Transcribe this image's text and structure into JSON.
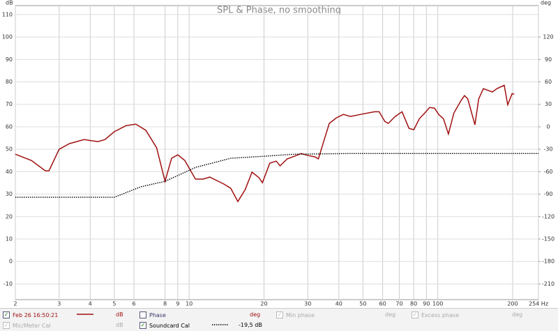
{
  "chart_data": {
    "type": "line",
    "title": "SPL & Phase, no smoothing",
    "ylabel": "dB",
    "y2label": "deg",
    "xscale": "log",
    "grid": true,
    "xlim": [
      2,
      254
    ],
    "xticks": [
      2,
      3,
      4,
      5,
      6,
      8,
      9,
      10,
      20,
      30,
      40,
      50,
      60,
      70,
      80,
      90,
      100,
      200,
      {
        "value": 254,
        "label": "254 Hz"
      }
    ],
    "ylim": [
      -17,
      114
    ],
    "yticks": [
      -10,
      0,
      10,
      20,
      30,
      40,
      50,
      60,
      70,
      80,
      90,
      100,
      110
    ],
    "y2lim": [
      -231,
      162
    ],
    "y2ticks": [
      -210,
      -180,
      -150,
      -120,
      -90,
      -60,
      -30,
      0,
      30,
      60,
      90,
      120
    ],
    "series": [
      {
        "name": "Feb 26 16:50:21",
        "color": "#a01010",
        "unit": "dB",
        "checked": true,
        "x": [
          2,
          2.32,
          2.64,
          2.73,
          3.0,
          3.3,
          3.78,
          4.3,
          4.58,
          5.0,
          5.57,
          6.1,
          6.7,
          7.4,
          8.0,
          8.5,
          9.0,
          9.6,
          10.6,
          11.4,
          12.1,
          13.8,
          14.7,
          15.7,
          16.8,
          17.9,
          19.1,
          19.7,
          21.1,
          22.4,
          23.2,
          24.8,
          26.5,
          28.2,
          30.1,
          32.1,
          33.1,
          34.8,
          36.6,
          39.1,
          41.7,
          44.5,
          48.9,
          55.6,
          58.1,
          61.2,
          63.2,
          67.4,
          71.8,
          76.6,
          80.1,
          84.3,
          88.6,
          92.7,
          97,
          100.8,
          105.4,
          110.3,
          116,
          124,
          128,
          132,
          141,
          146,
          152.5,
          165.6,
          173,
          185,
          191,
          199,
          203
        ],
        "values": [
          47.8,
          45.0,
          40.4,
          40.4,
          50,
          52.5,
          54.3,
          53.4,
          54.3,
          57.8,
          60.5,
          61.2,
          58.4,
          50.6,
          35.7,
          46,
          47.5,
          45,
          36.7,
          36.7,
          37.6,
          34.5,
          32.6,
          26.7,
          32,
          39.8,
          37.3,
          35.1,
          43.8,
          44.7,
          42.6,
          45.7,
          46.9,
          48.1,
          47.2,
          46.6,
          45.7,
          53.7,
          61.5,
          64,
          65.5,
          64.6,
          65.5,
          66.7,
          66.7,
          62.4,
          61.5,
          64.6,
          66.7,
          59.3,
          58.7,
          63.6,
          66.1,
          68.6,
          68.3,
          65.5,
          63.6,
          56.8,
          66.1,
          71.7,
          73.9,
          72.4,
          60.9,
          72.4,
          77,
          75.5,
          77,
          78.5,
          69.8,
          74.8,
          74.5
        ]
      },
      {
        "name": "Soundcard Cal",
        "color": "#000000",
        "dashed": true,
        "offset_label": "-19,5 dB",
        "checked": true,
        "x": [
          2,
          5,
          6.4,
          8,
          10.6,
          14.7,
          20,
          26.5,
          44.5,
          254
        ],
        "values": [
          28.6,
          28.6,
          33.3,
          35.7,
          41.9,
          46,
          46.9,
          47.8,
          48.1,
          48.1
        ]
      }
    ]
  },
  "other_traces": [
    {
      "name": "Phase",
      "unit": "deg",
      "checked": false,
      "enabled": true
    },
    {
      "name": "Min phase",
      "unit": "deg",
      "checked": true,
      "enabled": false
    },
    {
      "name": "Excess phase",
      "unit": "deg",
      "checked": true,
      "enabled": false
    },
    {
      "name": "Mic/Meter Cal",
      "unit": "dB",
      "checked": true,
      "enabled": false
    }
  ]
}
